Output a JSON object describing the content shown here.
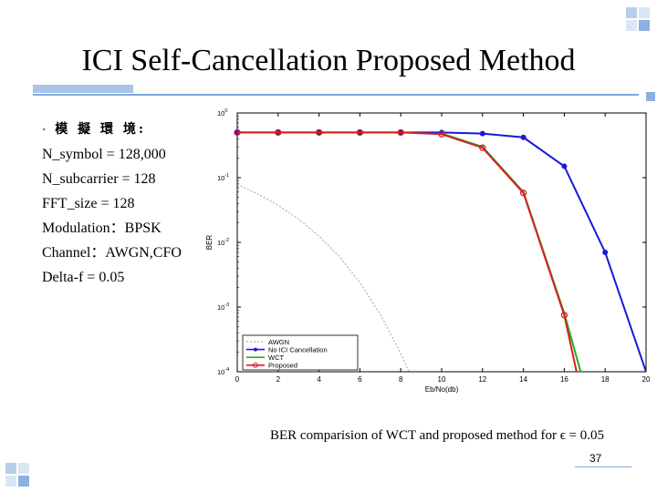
{
  "slide": {
    "title": "ICI Self-Cancellation Proposed Method",
    "page_number": "37",
    "caption": "BER comparision of WCT and proposed method for ϵ = 0.05"
  },
  "params": {
    "heading": "模 擬 環 境:",
    "lines": [
      "N_symbol = 128,000",
      "N_subcarrier = 128",
      "FFT_size = 128",
      "Modulation：BPSK",
      "Channel：AWGN,CFO",
      "Delta-f = 0.05"
    ]
  },
  "colors": {
    "accent": "#7fa8dc",
    "accent_light": "#a8c4e6",
    "awgn": "#9aa4b8",
    "no_ici": "#1a1ad6",
    "wct": "#22b022",
    "proposed": "#d62020"
  },
  "chart_data": {
    "type": "line",
    "xlabel": "Eb/No(db)",
    "ylabel": "BER",
    "xlim": [
      0,
      20
    ],
    "ylim": [
      0.0001,
      1
    ],
    "yscale": "log",
    "x_ticks": [
      "0",
      "2",
      "4",
      "6",
      "8",
      "10",
      "12",
      "14",
      "16",
      "18",
      "20"
    ],
    "y_ticks": [
      {
        "base": "10",
        "exp": "0",
        "value": 1
      },
      {
        "base": "10",
        "exp": "-1",
        "value": 0.1
      },
      {
        "base": "10",
        "exp": "-2",
        "value": 0.01
      },
      {
        "base": "10",
        "exp": "-3",
        "value": 0.001
      },
      {
        "base": "10",
        "exp": "-4",
        "value": 0.0001
      }
    ],
    "grid": false,
    "legend_position": "bottom-left",
    "series": [
      {
        "name": "AWGN",
        "color_key": "awgn",
        "marker": "none",
        "dashed": true,
        "x": [
          0,
          1,
          2,
          3,
          4,
          5,
          6,
          7,
          8,
          8.4
        ],
        "y": [
          0.079,
          0.056,
          0.0375,
          0.0229,
          0.0125,
          0.006,
          0.0024,
          0.00077,
          0.00019,
          0.0001
        ]
      },
      {
        "name": "No ICI Cancellation",
        "color_key": "no_ici",
        "marker": "dot",
        "dashed": false,
        "x": [
          0,
          2,
          4,
          6,
          8,
          10,
          12,
          14,
          16,
          18,
          20
        ],
        "y": [
          0.5,
          0.5,
          0.5,
          0.5,
          0.5,
          0.5,
          0.48,
          0.42,
          0.15,
          0.007,
          0.0001
        ]
      },
      {
        "name": "WCT",
        "color_key": "wct",
        "marker": "none",
        "dashed": false,
        "x": [
          10,
          12,
          14,
          16,
          16.8
        ],
        "y": [
          0.48,
          0.3,
          0.06,
          0.0008,
          0.0001
        ]
      },
      {
        "name": "Proposed",
        "color_key": "proposed",
        "marker": "circle",
        "dashed": false,
        "x": [
          0,
          2,
          4,
          6,
          8,
          10,
          12,
          14,
          16,
          16.6
        ],
        "y": [
          0.5,
          0.5,
          0.5,
          0.5,
          0.5,
          0.47,
          0.29,
          0.058,
          0.00075,
          0.0001
        ]
      }
    ]
  }
}
